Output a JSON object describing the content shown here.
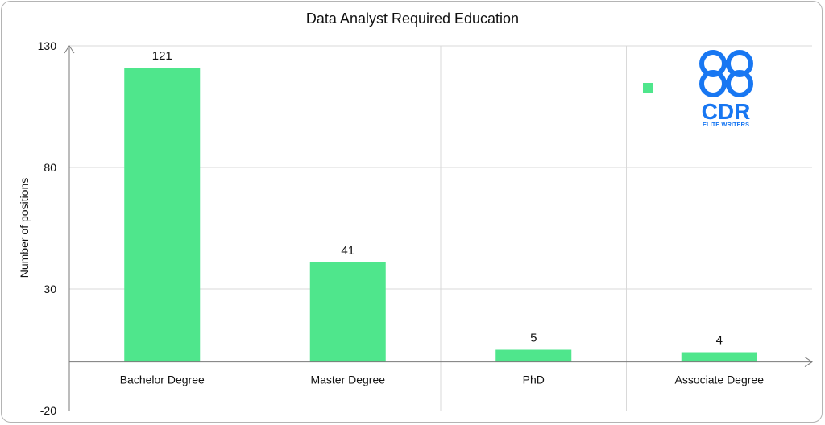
{
  "colors": {
    "bar": "#4fe68c",
    "grid": "#d9d9d9",
    "axis": "#7a7a7a",
    "logo": "#1877f2"
  },
  "logo": {
    "text": "CDR",
    "subtext": "ELITE WRITERS"
  },
  "chart_data": {
    "type": "bar",
    "title": "Data Analyst Required Education",
    "xlabel": "",
    "ylabel": "Number of positions",
    "categories": [
      "Bachelor Degree",
      "Master Degree",
      "PhD",
      "Associate Degree"
    ],
    "values": [
      121,
      41,
      5,
      4
    ],
    "data_labels": [
      "121",
      "41",
      "5",
      "4"
    ],
    "ylim": [
      -20,
      130
    ],
    "yticks": [
      -20,
      30,
      80,
      130
    ],
    "grid": true,
    "legend": "top-right marker, no text"
  }
}
